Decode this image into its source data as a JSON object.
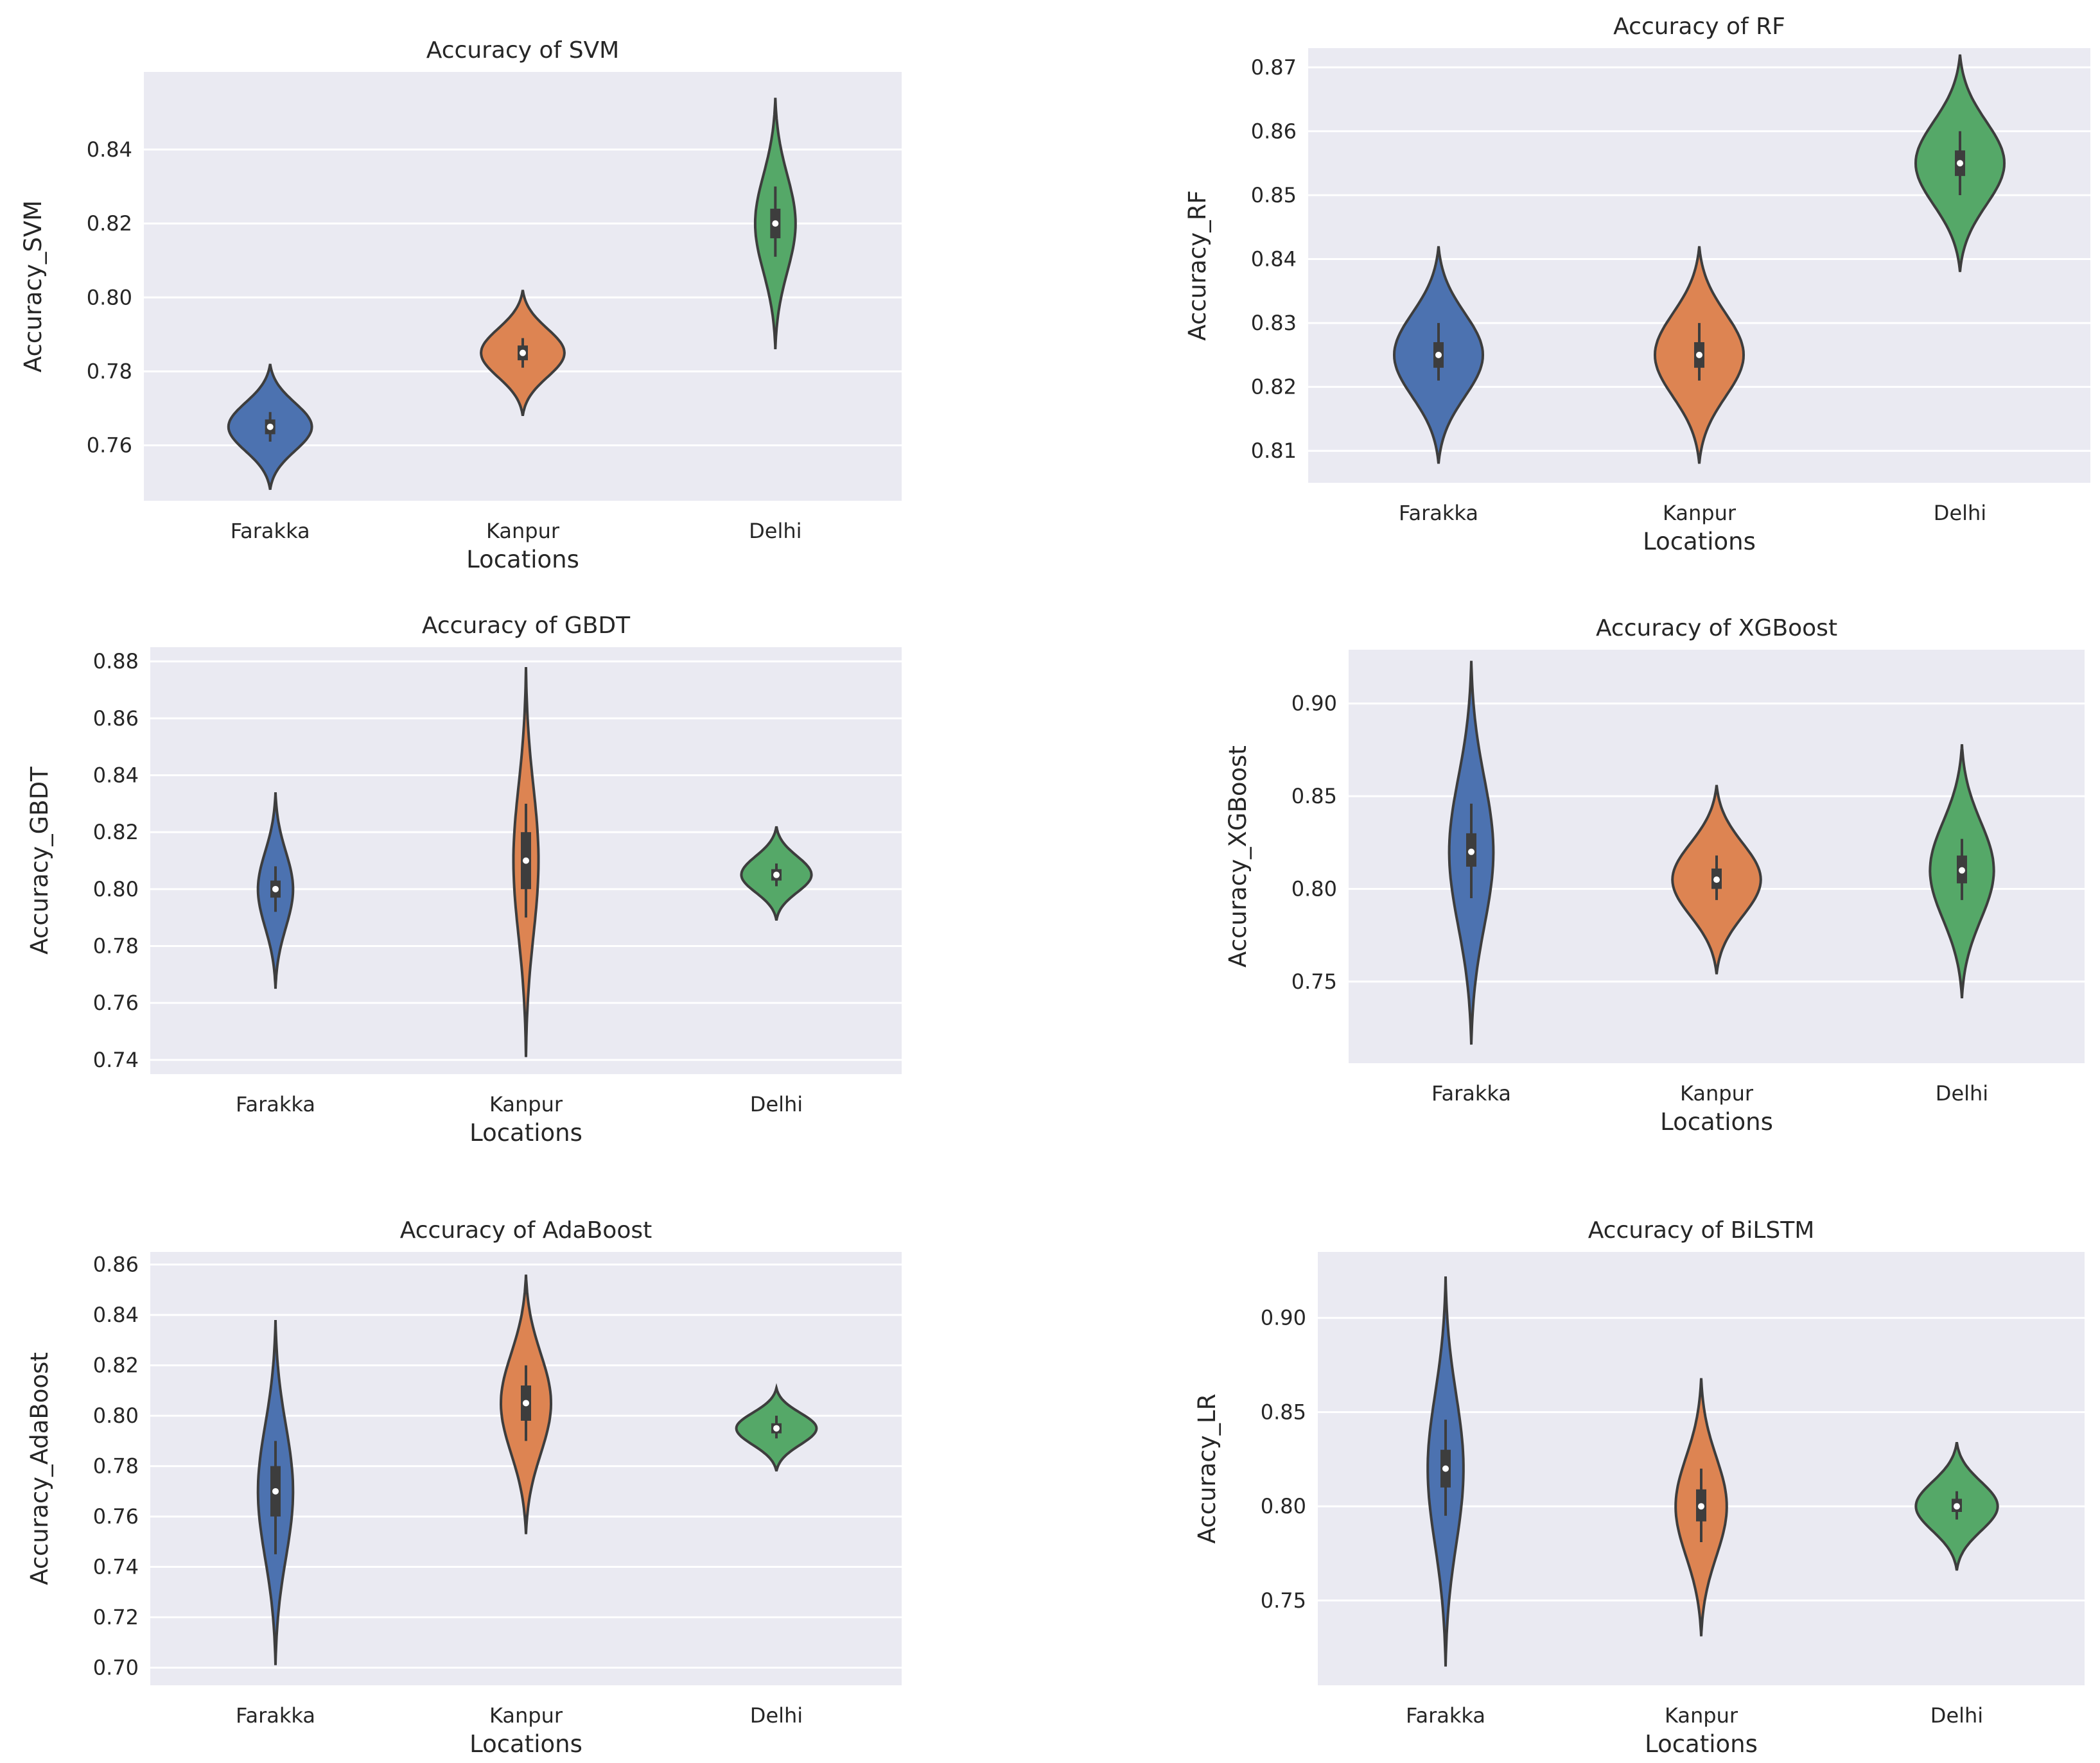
{
  "palette": {
    "Farakka": "#4c72b0",
    "Kanpur": "#dd8452",
    "Delhi": "#55a868",
    "panel_bg": "#eaeaf2",
    "grid": "#ffffff",
    "edge": "#3d3d3d"
  },
  "chart_data": [
    {
      "id": "svm",
      "type": "violin",
      "title": "Accuracy of SVM",
      "xlabel": "Locations",
      "ylabel": "Accuracy_SVM",
      "categories": [
        "Farakka",
        "Kanpur",
        "Delhi"
      ],
      "ylim": [
        0.745,
        0.861
      ],
      "yticks": [
        0.76,
        0.78,
        0.8,
        0.82,
        0.84
      ],
      "ytick_labels": [
        "0.76",
        "0.78",
        "0.80",
        "0.82",
        "0.84"
      ],
      "series": [
        {
          "name": "Farakka",
          "min": 0.748,
          "max": 0.782,
          "median": 0.765,
          "q1": 0.763,
          "q3": 0.767,
          "wlo": 0.761,
          "whi": 0.769,
          "peak": 0.765,
          "max_half_width": 0.165
        },
        {
          "name": "Kanpur",
          "min": 0.768,
          "max": 0.802,
          "median": 0.785,
          "q1": 0.783,
          "q3": 0.787,
          "wlo": 0.781,
          "whi": 0.789,
          "peak": 0.785,
          "max_half_width": 0.165
        },
        {
          "name": "Delhi",
          "min": 0.786,
          "max": 0.854,
          "median": 0.82,
          "q1": 0.816,
          "q3": 0.824,
          "wlo": 0.811,
          "whi": 0.83,
          "peak": 0.82,
          "max_half_width": 0.08
        }
      ]
    },
    {
      "id": "rf",
      "type": "violin",
      "title": "Accuracy of RF",
      "xlabel": "Locations",
      "ylabel": "Accuracy_RF",
      "categories": [
        "Farakka",
        "Kanpur",
        "Delhi"
      ],
      "ylim": [
        0.805,
        0.873
      ],
      "yticks": [
        0.81,
        0.82,
        0.83,
        0.84,
        0.85,
        0.86,
        0.87
      ],
      "ytick_labels": [
        "0.81",
        "0.82",
        "0.83",
        "0.84",
        "0.85",
        "0.86",
        "0.87"
      ],
      "series": [
        {
          "name": "Farakka",
          "min": 0.808,
          "max": 0.842,
          "median": 0.825,
          "q1": 0.823,
          "q3": 0.827,
          "wlo": 0.821,
          "whi": 0.83,
          "peak": 0.825,
          "max_half_width": 0.17
        },
        {
          "name": "Kanpur",
          "min": 0.808,
          "max": 0.842,
          "median": 0.825,
          "q1": 0.823,
          "q3": 0.827,
          "wlo": 0.821,
          "whi": 0.83,
          "peak": 0.825,
          "max_half_width": 0.17
        },
        {
          "name": "Delhi",
          "min": 0.838,
          "max": 0.872,
          "median": 0.855,
          "q1": 0.853,
          "q3": 0.857,
          "wlo": 0.85,
          "whi": 0.86,
          "peak": 0.855,
          "max_half_width": 0.17
        }
      ]
    },
    {
      "id": "gbdt",
      "type": "violin",
      "title": "Accuracy of GBDT",
      "xlabel": "Locations",
      "ylabel": "Accuracy_GBDT",
      "categories": [
        "Farakka",
        "Kanpur",
        "Delhi"
      ],
      "ylim": [
        0.735,
        0.885
      ],
      "yticks": [
        0.74,
        0.76,
        0.78,
        0.8,
        0.82,
        0.84,
        0.86,
        0.88
      ],
      "ytick_labels": [
        "0.74",
        "0.76",
        "0.78",
        "0.80",
        "0.82",
        "0.84",
        "0.86",
        "0.88"
      ],
      "series": [
        {
          "name": "Farakka",
          "min": 0.765,
          "max": 0.834,
          "median": 0.8,
          "q1": 0.797,
          "q3": 0.803,
          "wlo": 0.792,
          "whi": 0.808,
          "peak": 0.8,
          "max_half_width": 0.07
        },
        {
          "name": "Kanpur",
          "min": 0.741,
          "max": 0.878,
          "median": 0.81,
          "q1": 0.8,
          "q3": 0.82,
          "wlo": 0.79,
          "whi": 0.83,
          "peak": 0.81,
          "max_half_width": 0.05
        },
        {
          "name": "Delhi",
          "min": 0.789,
          "max": 0.822,
          "median": 0.805,
          "q1": 0.803,
          "q3": 0.807,
          "wlo": 0.801,
          "whi": 0.809,
          "peak": 0.805,
          "max_half_width": 0.14
        }
      ]
    },
    {
      "id": "xgboost",
      "type": "violin",
      "title": "Accuracy of XGBoost",
      "xlabel": "Locations",
      "ylabel": "Accuracy_XGBoost",
      "categories": [
        "Farakka",
        "Kanpur",
        "Delhi"
      ],
      "ylim": [
        0.706,
        0.929
      ],
      "yticks": [
        0.75,
        0.8,
        0.85,
        0.9
      ],
      "ytick_labels": [
        "0.75",
        "0.80",
        "0.85",
        "0.90"
      ],
      "series": [
        {
          "name": "Farakka",
          "min": 0.716,
          "max": 0.923,
          "median": 0.82,
          "q1": 0.812,
          "q3": 0.83,
          "wlo": 0.795,
          "whi": 0.846,
          "peak": 0.82,
          "max_half_width": 0.09
        },
        {
          "name": "Kanpur",
          "min": 0.754,
          "max": 0.856,
          "median": 0.805,
          "q1": 0.8,
          "q3": 0.811,
          "wlo": 0.794,
          "whi": 0.818,
          "peak": 0.805,
          "max_half_width": 0.18
        },
        {
          "name": "Delhi",
          "min": 0.741,
          "max": 0.878,
          "median": 0.81,
          "q1": 0.803,
          "q3": 0.818,
          "wlo": 0.794,
          "whi": 0.827,
          "peak": 0.81,
          "max_half_width": 0.13
        }
      ]
    },
    {
      "id": "adaboost",
      "type": "violin",
      "title": "Accuracy of AdaBoost",
      "xlabel": "Locations",
      "ylabel": "Accuracy_AdaBoost",
      "categories": [
        "Farakka",
        "Kanpur",
        "Delhi"
      ],
      "ylim": [
        0.693,
        0.865
      ],
      "yticks": [
        0.7,
        0.72,
        0.74,
        0.76,
        0.78,
        0.8,
        0.82,
        0.84,
        0.86
      ],
      "ytick_labels": [
        "0.70",
        "0.72",
        "0.74",
        "0.76",
        "0.78",
        "0.80",
        "0.82",
        "0.84",
        "0.86"
      ],
      "series": [
        {
          "name": "Farakka",
          "min": 0.701,
          "max": 0.838,
          "median": 0.77,
          "q1": 0.76,
          "q3": 0.78,
          "wlo": 0.745,
          "whi": 0.79,
          "peak": 0.77,
          "max_half_width": 0.07
        },
        {
          "name": "Kanpur",
          "min": 0.753,
          "max": 0.856,
          "median": 0.805,
          "q1": 0.798,
          "q3": 0.812,
          "wlo": 0.79,
          "whi": 0.82,
          "peak": 0.805,
          "max_half_width": 0.1
        },
        {
          "name": "Delhi",
          "min": 0.778,
          "max": 0.811,
          "median": 0.795,
          "q1": 0.793,
          "q3": 0.797,
          "wlo": 0.791,
          "whi": 0.8,
          "peak": 0.795,
          "max_half_width": 0.16
        }
      ]
    },
    {
      "id": "bilstm",
      "type": "violin",
      "title": "Accuracy of BiLSTM",
      "xlabel": "Locations",
      "ylabel": "Accuracy_LR",
      "categories": [
        "Farakka",
        "Kanpur",
        "Delhi"
      ],
      "ylim": [
        0.705,
        0.935
      ],
      "yticks": [
        0.75,
        0.8,
        0.85,
        0.9
      ],
      "ytick_labels": [
        "0.75",
        "0.80",
        "0.85",
        "0.90"
      ],
      "series": [
        {
          "name": "Farakka",
          "min": 0.715,
          "max": 0.922,
          "median": 0.82,
          "q1": 0.81,
          "q3": 0.83,
          "wlo": 0.795,
          "whi": 0.846,
          "peak": 0.82,
          "max_half_width": 0.07
        },
        {
          "name": "Kanpur",
          "min": 0.731,
          "max": 0.868,
          "median": 0.8,
          "q1": 0.792,
          "q3": 0.809,
          "wlo": 0.781,
          "whi": 0.82,
          "peak": 0.8,
          "max_half_width": 0.1
        },
        {
          "name": "Delhi",
          "min": 0.766,
          "max": 0.834,
          "median": 0.8,
          "q1": 0.797,
          "q3": 0.804,
          "wlo": 0.793,
          "whi": 0.808,
          "peak": 0.8,
          "max_half_width": 0.16
        }
      ]
    }
  ]
}
